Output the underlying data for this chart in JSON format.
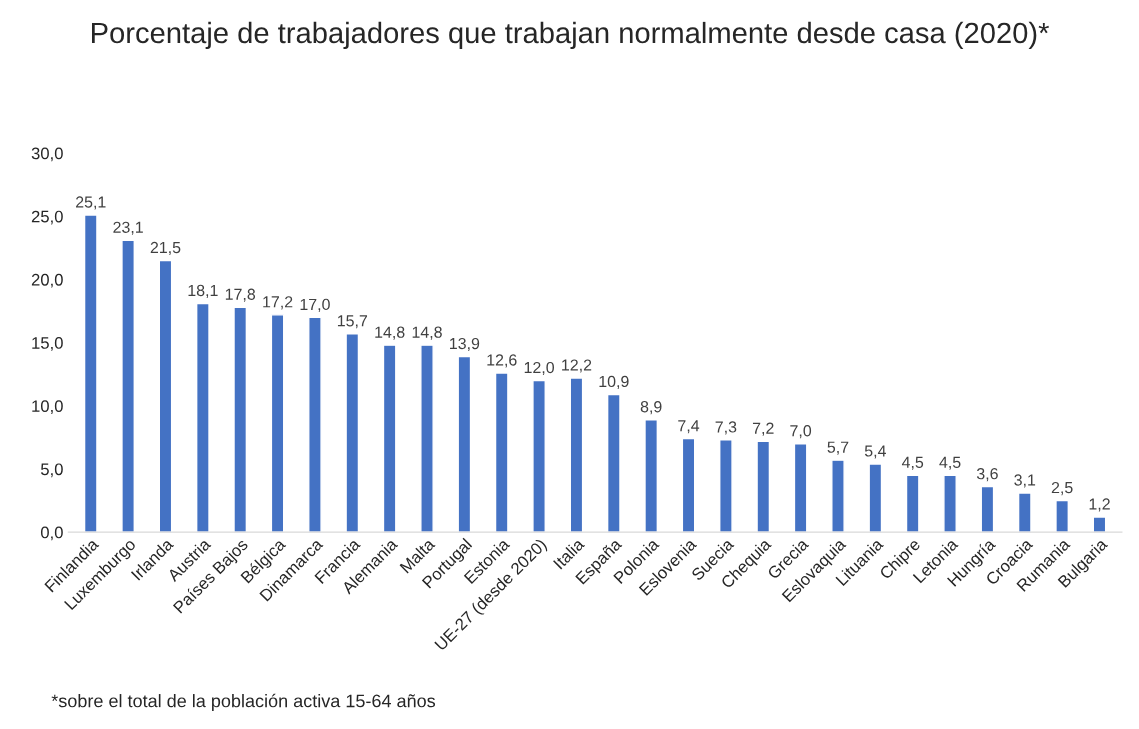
{
  "chart_data": {
    "type": "bar",
    "title": "Porcentaje de trabajadores que trabajan normalmente desde casa (2020)*",
    "categories": [
      "Finlandia",
      "Luxemburgo",
      "Irlanda",
      "Austria",
      "Países Bajos",
      "Bélgica",
      "Dinamarca",
      "Francia",
      "Alemania",
      "Malta",
      "Portugal",
      "Estonia",
      "UE-27 (desde 2020)",
      "Italia",
      "España",
      "Polonia",
      "Eslovenia",
      "Suecia",
      "Chequia",
      "Grecia",
      "Eslovaquia",
      "Lituania",
      "Chipre",
      "Letonia",
      "Hungría",
      "Croacia",
      "Rumania",
      "Bulgaria"
    ],
    "values": [
      25.1,
      23.1,
      21.5,
      18.1,
      17.8,
      17.2,
      17.0,
      15.7,
      14.8,
      14.8,
      13.9,
      12.6,
      12.0,
      12.2,
      10.9,
      8.9,
      7.4,
      7.3,
      7.2,
      7.0,
      5.7,
      5.4,
      4.5,
      4.5,
      3.6,
      3.1,
      2.5,
      1.2
    ],
    "value_labels": [
      "25,1",
      "23,1",
      "21,5",
      "18,1",
      "17,8",
      "17,2",
      "17,0",
      "15,7",
      "14,8",
      "14,8",
      "13,9",
      "12,6",
      "12,0",
      "12,2",
      "10,9",
      "8,9",
      "7,4",
      "7,3",
      "7,2",
      "7,0",
      "5,7",
      "5,4",
      "4,5",
      "4,5",
      "3,6",
      "3,1",
      "2,5",
      "1,2"
    ],
    "color": "#4472c4",
    "ylim": [
      0,
      30
    ],
    "yticks": [
      {
        "value": 0,
        "label": "0,0"
      },
      {
        "value": 5,
        "label": "5,0"
      },
      {
        "value": 10,
        "label": "10,0"
      },
      {
        "value": 15,
        "label": "15,0"
      },
      {
        "value": 20,
        "label": "20,0"
      },
      {
        "value": 25,
        "label": "25,0"
      },
      {
        "value": 30,
        "label": "30,0"
      }
    ],
    "grid": false,
    "legend": false,
    "annotations": [
      "*sobre el total de la población activa 15-64 años"
    ]
  }
}
